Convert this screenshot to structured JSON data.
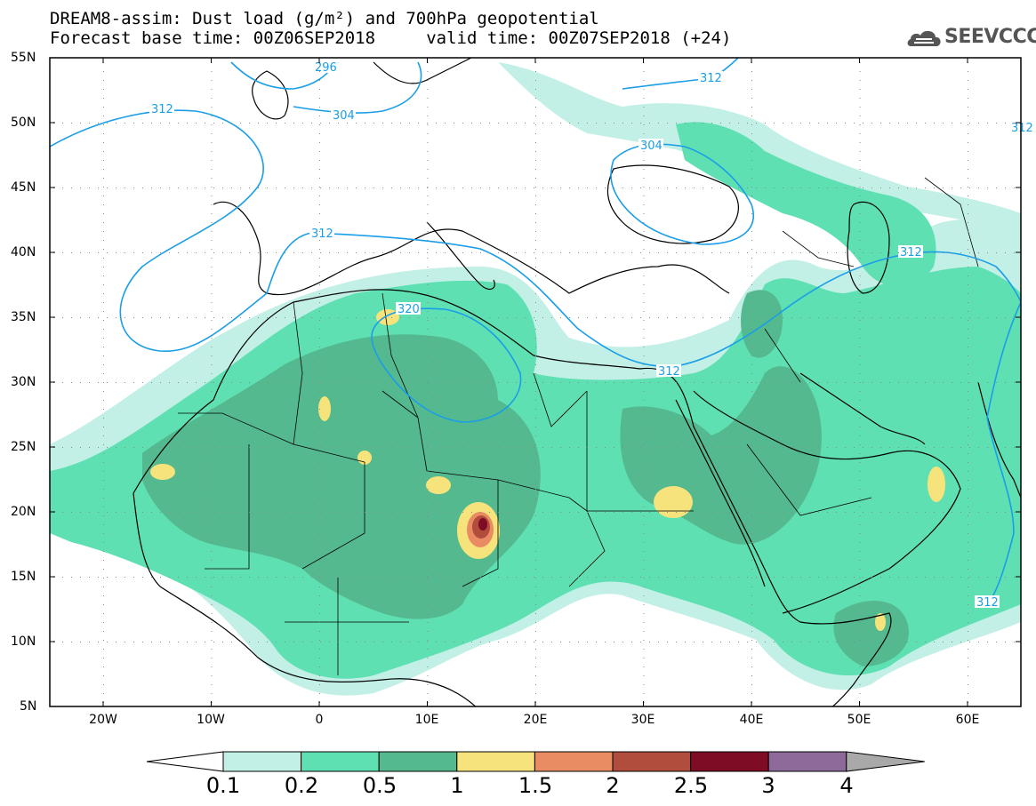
{
  "title": {
    "line1": "DREAM8-assim: Dust load (g/m²) and 700hPa geopotential",
    "line2": "Forecast base time: 00Z06SEP2018     valid time: 00Z07SEP2018 (+24)"
  },
  "logo": {
    "text": "SEEVCCC",
    "icon": "cloud-icon"
  },
  "axes": {
    "lat_labels": [
      "55N",
      "50N",
      "45N",
      "40N",
      "35N",
      "30N",
      "25N",
      "20N",
      "15N",
      "10N",
      "5N"
    ],
    "lon_labels": [
      "20W",
      "10W",
      "0",
      "10E",
      "20E",
      "30E",
      "40E",
      "50E",
      "60E"
    ]
  },
  "contours": {
    "labels": [
      "296",
      "312",
      "304",
      "312",
      "304",
      "312",
      "320",
      "312",
      "312",
      "312",
      "312"
    ],
    "color": "#1a9ee8"
  },
  "colorbar": {
    "labels": [
      "0.1",
      "0.2",
      "0.5",
      "1",
      "1.5",
      "2",
      "2.5",
      "3",
      "4"
    ],
    "colors": [
      "#c3f0e6",
      "#5fe0b3",
      "#54b98e",
      "#f7e37c",
      "#ea8c63",
      "#b14d3c",
      "#7d0c24",
      "#8e6a9a"
    ],
    "under_color": "#ffffff",
    "over_color": "#a9a9a9"
  },
  "legend": {
    "dust_colors": [
      "#c3f0e6",
      "#5fe0b3",
      "#54b98e",
      "#f7e37c",
      "#ea8c63",
      "#b14d3c",
      "#7d0c24"
    ]
  }
}
